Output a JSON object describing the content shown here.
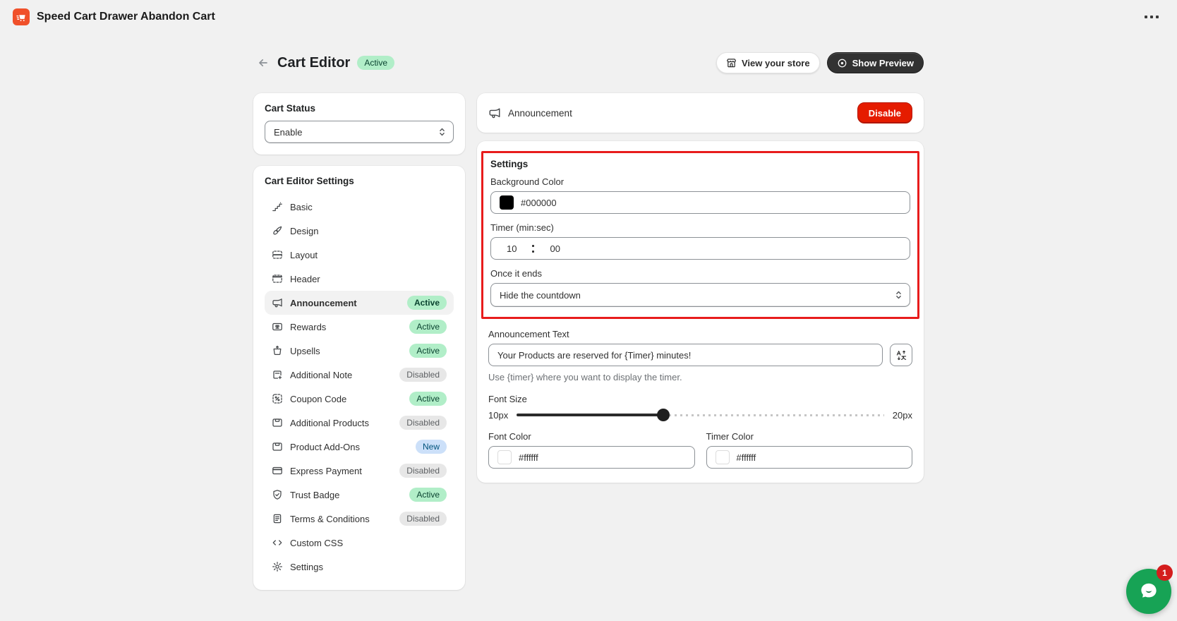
{
  "topbar": {
    "app_title": "Speed Cart Drawer Abandon Cart"
  },
  "page_header": {
    "title": "Cart Editor",
    "status_badge": "Active",
    "view_store_button": "View your store",
    "show_preview_button": "Show Preview"
  },
  "cart_status": {
    "title": "Cart Status",
    "selected_option": "Enable"
  },
  "sidebar": {
    "title": "Cart Editor Settings",
    "items": [
      {
        "label": "Basic",
        "icon": "stairs-icon",
        "badge": null,
        "badge_tone": null,
        "selected": false
      },
      {
        "label": "Design",
        "icon": "paintbrush-icon",
        "badge": null,
        "badge_tone": null,
        "selected": false
      },
      {
        "label": "Layout",
        "icon": "layout-icon",
        "badge": null,
        "badge_tone": null,
        "selected": false
      },
      {
        "label": "Header",
        "icon": "header-icon",
        "badge": null,
        "badge_tone": null,
        "selected": false
      },
      {
        "label": "Announcement",
        "icon": "megaphone-icon",
        "badge": "Active",
        "badge_tone": "success",
        "selected": true
      },
      {
        "label": "Rewards",
        "icon": "gift-card-icon",
        "badge": "Active",
        "badge_tone": "success",
        "selected": false
      },
      {
        "label": "Upsells",
        "icon": "cart-up-icon",
        "badge": "Active",
        "badge_tone": "success",
        "selected": false
      },
      {
        "label": "Additional Note",
        "icon": "note-add-icon",
        "badge": "Disabled",
        "badge_tone": "disabled",
        "selected": false
      },
      {
        "label": "Coupon Code",
        "icon": "discount-icon",
        "badge": "Active",
        "badge_tone": "success",
        "selected": false
      },
      {
        "label": "Additional Products",
        "icon": "product-box-icon",
        "badge": "Disabled",
        "badge_tone": "disabled",
        "selected": false
      },
      {
        "label": "Product Add-Ons",
        "icon": "product-box-icon",
        "badge": "New",
        "badge_tone": "info",
        "selected": false
      },
      {
        "label": "Express Payment",
        "icon": "credit-card-icon",
        "badge": "Disabled",
        "badge_tone": "disabled",
        "selected": false
      },
      {
        "label": "Trust Badge",
        "icon": "shield-check-icon",
        "badge": "Active",
        "badge_tone": "success",
        "selected": false
      },
      {
        "label": "Terms & Conditions",
        "icon": "terms-icon",
        "badge": "Disabled",
        "badge_tone": "disabled",
        "selected": false
      },
      {
        "label": "Custom CSS",
        "icon": "code-icon",
        "badge": null,
        "badge_tone": null,
        "selected": false
      },
      {
        "label": "Settings",
        "icon": "gear-icon",
        "badge": null,
        "badge_tone": null,
        "selected": false
      }
    ]
  },
  "announcement_panel": {
    "title": "Announcement",
    "icon": "megaphone-icon",
    "disable_button": "Disable"
  },
  "settings_section": {
    "title": "Settings",
    "background_color": {
      "label": "Background Color",
      "value": "#000000"
    },
    "timer": {
      "label": "Timer (min:sec)",
      "minutes": "10",
      "seconds": "00"
    },
    "once_it_ends": {
      "label": "Once it ends",
      "selected_option": "Hide the countdown"
    }
  },
  "announcement_text": {
    "label": "Announcement Text",
    "value": "Your Products are reserved for {Timer} minutes!",
    "helper_text": "Use {timer} where you want to display the timer."
  },
  "font_size": {
    "label": "Font Size",
    "min_label": "10px",
    "max_label": "20px",
    "value_percent": 40
  },
  "font_color": {
    "label": "Font Color",
    "value": "#ffffff"
  },
  "timer_color": {
    "label": "Timer Color",
    "value": "#ffffff"
  },
  "chat_widget": {
    "unread_count": "1"
  },
  "colors": {
    "page_bg": "#f1f1f1",
    "accent_red": "#e51c00",
    "highlight_red": "#e81c1c",
    "badge_success_bg": "#b1eec8",
    "badge_success_text": "#0a4330",
    "badge_disabled_bg": "#e7e7e7",
    "badge_disabled_text": "#5c5f62",
    "badge_info_bg": "#cce0f9",
    "badge_info_text": "#00527c",
    "chat_green": "#17a355",
    "app_icon_orange": "#f0502a"
  }
}
